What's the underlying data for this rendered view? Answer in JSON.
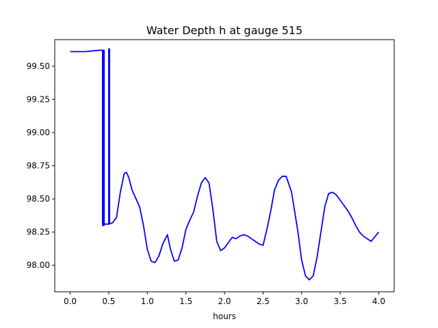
{
  "chart_data": {
    "type": "line",
    "title": "Water Depth h at gauge 515",
    "xlabel": "hours",
    "ylabel": "",
    "xlim": [
      -0.2,
      4.2
    ],
    "ylim": [
      97.8,
      99.7
    ],
    "xticks": [
      0.0,
      0.5,
      1.0,
      1.5,
      2.0,
      2.5,
      3.0,
      3.5,
      4.0
    ],
    "xtick_labels": [
      "0.0",
      "0.5",
      "1.0",
      "1.5",
      "2.0",
      "2.5",
      "3.0",
      "3.5",
      "4.0"
    ],
    "yticks": [
      98.0,
      98.25,
      98.5,
      98.75,
      99.0,
      99.25,
      99.5
    ],
    "ytick_labels": [
      "98.00",
      "98.25",
      "98.50",
      "98.75",
      "99.00",
      "99.25",
      "99.50"
    ],
    "grid": false,
    "series": [
      {
        "color": "#0000ff",
        "x": [
          0.0,
          0.2,
          0.38,
          0.42,
          0.42,
          0.43,
          0.43,
          0.44,
          0.44,
          0.42,
          0.42,
          0.5,
          0.5,
          0.51,
          0.51,
          0.5,
          0.5,
          0.55,
          0.6,
          0.65,
          0.7,
          0.73,
          0.76,
          0.8,
          0.9,
          0.95,
          1.0,
          1.05,
          1.1,
          1.15,
          1.2,
          1.26,
          1.3,
          1.35,
          1.4,
          1.45,
          1.5,
          1.55,
          1.6,
          1.65,
          1.7,
          1.75,
          1.8,
          1.85,
          1.9,
          1.95,
          2.0,
          2.05,
          2.1,
          2.15,
          2.2,
          2.25,
          2.3,
          2.35,
          2.4,
          2.45,
          2.5,
          2.55,
          2.6,
          2.65,
          2.7,
          2.75,
          2.8,
          2.87,
          2.95,
          3.0,
          3.05,
          3.1,
          3.15,
          3.2,
          3.25,
          3.3,
          3.35,
          3.4,
          3.45,
          3.5,
          3.55,
          3.6,
          3.65,
          3.7,
          3.75,
          3.8,
          3.9,
          4.0
        ],
        "y": [
          99.61,
          99.61,
          99.62,
          99.62,
          98.3,
          98.3,
          99.62,
          99.62,
          98.3,
          98.3,
          98.31,
          98.31,
          99.63,
          99.63,
          98.31,
          98.31,
          98.31,
          98.32,
          98.36,
          98.55,
          98.69,
          98.7,
          98.66,
          98.57,
          98.44,
          98.3,
          98.12,
          98.03,
          98.02,
          98.07,
          98.16,
          98.23,
          98.12,
          98.03,
          98.04,
          98.13,
          98.27,
          98.34,
          98.4,
          98.52,
          98.62,
          98.66,
          98.62,
          98.42,
          98.18,
          98.11,
          98.13,
          98.17,
          98.21,
          98.2,
          98.22,
          98.23,
          98.22,
          98.2,
          98.18,
          98.16,
          98.15,
          98.27,
          98.41,
          98.57,
          98.64,
          98.67,
          98.67,
          98.55,
          98.26,
          98.04,
          97.92,
          97.89,
          97.92,
          98.06,
          98.25,
          98.44,
          98.54,
          98.55,
          98.53,
          98.49,
          98.45,
          98.41,
          98.36,
          98.3,
          98.25,
          98.22,
          98.18,
          98.25
        ]
      }
    ]
  }
}
